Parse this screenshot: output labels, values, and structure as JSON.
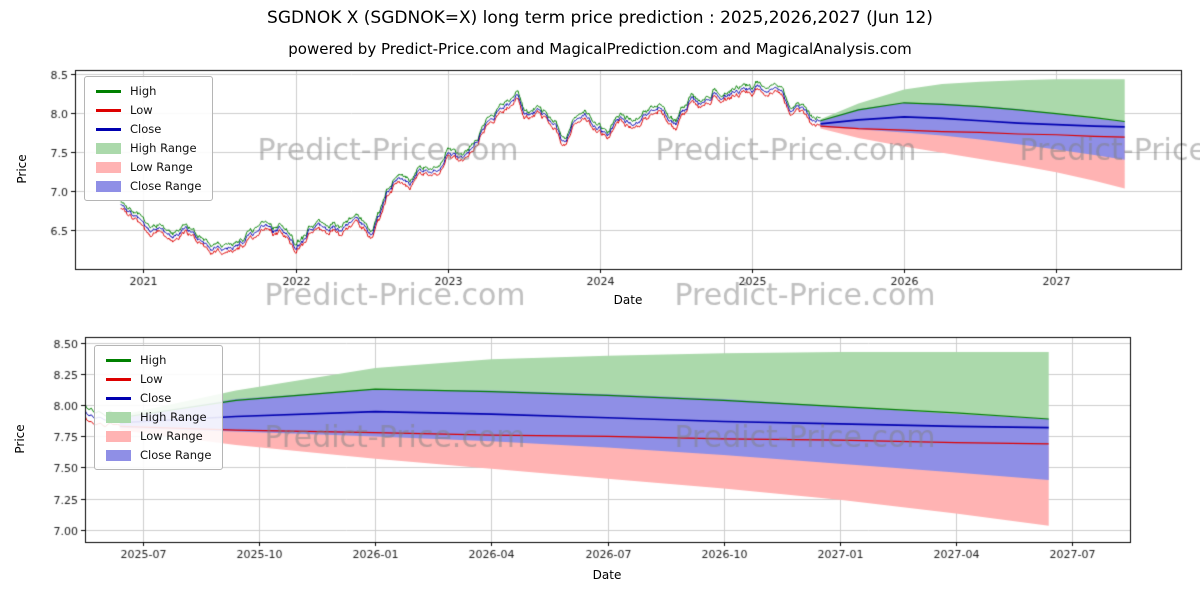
{
  "page": {
    "title": "SGDNOK X (SGDNOK=X) long term price prediction : 2025,2026,2027 (Jun 12)",
    "subtitle": "powered by Predict-Price.com and MagicalPrediction.com and MagicalAnalysis.com"
  },
  "watermark": "Predict-Price.com",
  "colors": {
    "high": "#008000",
    "low": "#dd0000",
    "close": "#0000b0",
    "high_range": "#abd9ab",
    "low_range": "#ffb3b3",
    "close_range": "#8f8fe6",
    "grid": "#cccccc",
    "watermark": "rgba(130,130,130,0.5)"
  },
  "legend": [
    {
      "label": "High",
      "swatch": "line",
      "color": "high"
    },
    {
      "label": "Low",
      "swatch": "line",
      "color": "low"
    },
    {
      "label": "Close",
      "swatch": "line",
      "color": "close"
    },
    {
      "label": "High Range",
      "swatch": "patch",
      "color": "high_range"
    },
    {
      "label": "Low Range",
      "swatch": "patch",
      "color": "low_range"
    },
    {
      "label": "Close Range",
      "swatch": "patch",
      "color": "close_range"
    }
  ],
  "chart_data": [
    {
      "type": "line",
      "title": "",
      "xlabel": "Date",
      "ylabel": "Price",
      "xlim": [
        2020.55,
        2027.82
      ],
      "ylim": [
        6.0,
        8.55
      ],
      "grid": true,
      "legend_position": "upper left",
      "xticks": [
        {
          "v": 2021,
          "label": "2021"
        },
        {
          "v": 2022,
          "label": "2022"
        },
        {
          "v": 2023,
          "label": "2023"
        },
        {
          "v": 2024,
          "label": "2024"
        },
        {
          "v": 2025,
          "label": "2025"
        },
        {
          "v": 2026,
          "label": "2026"
        },
        {
          "v": 2027,
          "label": "2027"
        }
      ],
      "yticks": [
        {
          "v": 6.5,
          "label": "6.5"
        },
        {
          "v": 7.0,
          "label": "7.0"
        },
        {
          "v": 7.5,
          "label": "7.5"
        },
        {
          "v": 8.0,
          "label": "8.0"
        },
        {
          "v": 8.5,
          "label": "8.5"
        }
      ],
      "history": {
        "description": "noisy daily High/Low/Close lines 2020-2025; Close anchor points (year, price)",
        "high_low_spread": 0.09,
        "close_anchors": [
          [
            2020.85,
            6.85
          ],
          [
            2020.9,
            6.72
          ],
          [
            2020.95,
            6.65
          ],
          [
            2021.0,
            6.57
          ],
          [
            2021.05,
            6.48
          ],
          [
            2021.1,
            6.53
          ],
          [
            2021.15,
            6.43
          ],
          [
            2021.2,
            6.38
          ],
          [
            2021.25,
            6.45
          ],
          [
            2021.3,
            6.48
          ],
          [
            2021.35,
            6.38
          ],
          [
            2021.4,
            6.28
          ],
          [
            2021.45,
            6.24
          ],
          [
            2021.5,
            6.3
          ],
          [
            2021.55,
            6.25
          ],
          [
            2021.6,
            6.3
          ],
          [
            2021.65,
            6.36
          ],
          [
            2021.7,
            6.44
          ],
          [
            2021.75,
            6.5
          ],
          [
            2021.8,
            6.55
          ],
          [
            2021.85,
            6.46
          ],
          [
            2021.9,
            6.5
          ],
          [
            2021.95,
            6.42
          ],
          [
            2022.0,
            6.3
          ],
          [
            2022.05,
            6.35
          ],
          [
            2022.1,
            6.5
          ],
          [
            2022.15,
            6.55
          ],
          [
            2022.2,
            6.5
          ],
          [
            2022.25,
            6.55
          ],
          [
            2022.3,
            6.5
          ],
          [
            2022.35,
            6.56
          ],
          [
            2022.4,
            6.65
          ],
          [
            2022.45,
            6.55
          ],
          [
            2022.5,
            6.45
          ],
          [
            2022.55,
            6.62
          ],
          [
            2022.6,
            6.95
          ],
          [
            2022.65,
            7.1
          ],
          [
            2022.7,
            7.18
          ],
          [
            2022.75,
            7.08
          ],
          [
            2022.8,
            7.25
          ],
          [
            2022.85,
            7.3
          ],
          [
            2022.9,
            7.2
          ],
          [
            2022.95,
            7.35
          ],
          [
            2023.0,
            7.52
          ],
          [
            2023.05,
            7.42
          ],
          [
            2023.1,
            7.4
          ],
          [
            2023.15,
            7.5
          ],
          [
            2023.2,
            7.65
          ],
          [
            2023.25,
            7.85
          ],
          [
            2023.3,
            7.95
          ],
          [
            2023.35,
            8.05
          ],
          [
            2023.4,
            8.12
          ],
          [
            2023.45,
            8.25
          ],
          [
            2023.5,
            8.02
          ],
          [
            2023.55,
            7.95
          ],
          [
            2023.6,
            8.05
          ],
          [
            2023.65,
            7.95
          ],
          [
            2023.7,
            7.88
          ],
          [
            2023.75,
            7.62
          ],
          [
            2023.8,
            7.7
          ],
          [
            2023.85,
            7.95
          ],
          [
            2023.9,
            8.05
          ],
          [
            2023.95,
            7.92
          ],
          [
            2024.0,
            7.85
          ],
          [
            2024.05,
            7.76
          ],
          [
            2024.1,
            7.85
          ],
          [
            2024.15,
            7.9
          ],
          [
            2024.2,
            7.86
          ],
          [
            2024.25,
            7.9
          ],
          [
            2024.3,
            7.96
          ],
          [
            2024.35,
            8.04
          ],
          [
            2024.4,
            8.1
          ],
          [
            2024.45,
            7.92
          ],
          [
            2024.5,
            7.85
          ],
          [
            2024.55,
            8.0
          ],
          [
            2024.6,
            8.18
          ],
          [
            2024.65,
            8.08
          ],
          [
            2024.7,
            8.15
          ],
          [
            2024.75,
            8.25
          ],
          [
            2024.8,
            8.15
          ],
          [
            2024.85,
            8.22
          ],
          [
            2024.9,
            8.3
          ],
          [
            2024.95,
            8.34
          ],
          [
            2025.0,
            8.3
          ],
          [
            2025.05,
            8.35
          ],
          [
            2025.1,
            8.33
          ],
          [
            2025.15,
            8.38
          ],
          [
            2025.2,
            8.33
          ],
          [
            2025.25,
            7.95
          ],
          [
            2025.3,
            8.08
          ],
          [
            2025.35,
            7.98
          ],
          [
            2025.4,
            7.88
          ],
          [
            2025.45,
            7.85
          ]
        ]
      },
      "prediction": {
        "description": "forecast bands and lines Jun 2025 - Jun 2027 (shared by both subplots)",
        "x": [
          2025.45,
          2025.7,
          2026.0,
          2026.25,
          2026.5,
          2026.75,
          2027.0,
          2027.25,
          2027.45
        ],
        "high_band_top": [
          7.92,
          8.12,
          8.3,
          8.37,
          8.4,
          8.42,
          8.43,
          8.43,
          8.43
        ],
        "high_band_bottom": [
          7.87,
          7.96,
          8.02,
          7.99,
          7.95,
          7.91,
          7.87,
          7.83,
          7.8
        ],
        "close_band_top": [
          7.9,
          8.05,
          8.13,
          8.12,
          8.09,
          8.05,
          7.99,
          7.93,
          7.89
        ],
        "close_band_bottom": [
          7.82,
          7.79,
          7.75,
          7.71,
          7.66,
          7.6,
          7.53,
          7.46,
          7.4
        ],
        "low_band_top": [
          7.85,
          7.81,
          7.79,
          7.77,
          7.75,
          7.73,
          7.71,
          7.69,
          7.67
        ],
        "low_band_bottom": [
          7.8,
          7.68,
          7.57,
          7.49,
          7.41,
          7.33,
          7.24,
          7.13,
          7.03
        ],
        "high_line": [
          7.9,
          8.04,
          8.13,
          8.11,
          8.08,
          8.04,
          7.99,
          7.94,
          7.89
        ],
        "close_line": [
          7.86,
          7.91,
          7.95,
          7.93,
          7.9,
          7.87,
          7.85,
          7.83,
          7.82
        ],
        "low_line": [
          7.83,
          7.8,
          7.78,
          7.76,
          7.75,
          7.73,
          7.72,
          7.7,
          7.69
        ]
      }
    },
    {
      "type": "line",
      "title": "",
      "xlabel": "Date",
      "ylabel": "Price",
      "xlim": [
        2025.375,
        2027.625
      ],
      "ylim": [
        6.9,
        8.55
      ],
      "grid": true,
      "legend_position": "upper left",
      "note": "zoomed view of prediction period; same history/prediction data as chart 0",
      "xticks": [
        {
          "v": 2025.5,
          "label": "2025-07"
        },
        {
          "v": 2025.75,
          "label": "2025-10"
        },
        {
          "v": 2026.0,
          "label": "2026-01"
        },
        {
          "v": 2026.25,
          "label": "2026-04"
        },
        {
          "v": 2026.5,
          "label": "2026-07"
        },
        {
          "v": 2026.75,
          "label": "2026-10"
        },
        {
          "v": 2027.0,
          "label": "2027-01"
        },
        {
          "v": 2027.25,
          "label": "2027-04"
        },
        {
          "v": 2027.5,
          "label": "2027-07"
        }
      ],
      "yticks": [
        {
          "v": 7.0,
          "label": "7.00"
        },
        {
          "v": 7.25,
          "label": "7.25"
        },
        {
          "v": 7.5,
          "label": "7.50"
        },
        {
          "v": 7.75,
          "label": "7.75"
        },
        {
          "v": 8.0,
          "label": "8.00"
        },
        {
          "v": 8.25,
          "label": "8.25"
        },
        {
          "v": 8.5,
          "label": "8.50"
        }
      ]
    }
  ]
}
